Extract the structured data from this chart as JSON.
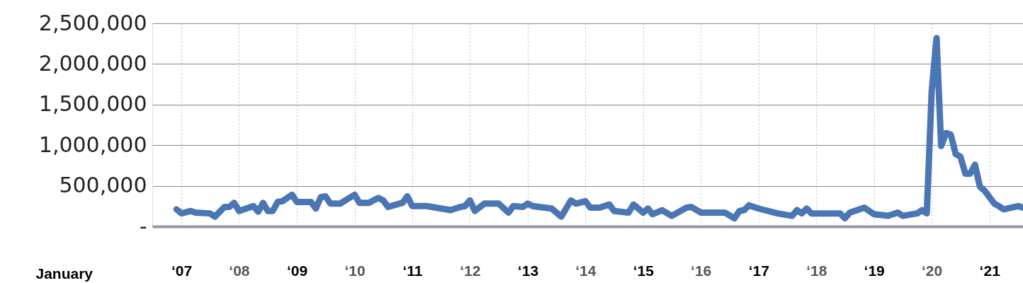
{
  "chart_data": {
    "type": "line",
    "xlabel": "January",
    "x": [
      "2006-12",
      "2007-01",
      "2007-03",
      "2007-04",
      "2007-07",
      "2007-08",
      "2007-10",
      "2007-11",
      "2007-12",
      "2008-01",
      "2008-04",
      "2008-05",
      "2008-06",
      "2008-07",
      "2008-08",
      "2008-09",
      "2008-10",
      "2008-12",
      "2009-01",
      "2009-04",
      "2009-05",
      "2009-06",
      "2009-07",
      "2009-08",
      "2009-10",
      "2010-01",
      "2010-02",
      "2010-04",
      "2010-05",
      "2010-06",
      "2010-07",
      "2010-08",
      "2010-11",
      "2010-12",
      "2011-01",
      "2011-04",
      "2011-09",
      "2011-11",
      "2011-12",
      "2012-01",
      "2012-02",
      "2012-04",
      "2012-07",
      "2012-09",
      "2012-10",
      "2012-12",
      "2013-01",
      "2013-02",
      "2013-06",
      "2013-08",
      "2013-10",
      "2013-11",
      "2014-01",
      "2014-02",
      "2014-04",
      "2014-06",
      "2014-07",
      "2014-10",
      "2014-11",
      "2015-01",
      "2015-02",
      "2015-03",
      "2015-05",
      "2015-07",
      "2015-10",
      "2015-11",
      "2016-01",
      "2016-06",
      "2016-08",
      "2016-09",
      "2016-10",
      "2016-11",
      "2017-01",
      "2017-05",
      "2017-08",
      "2017-09",
      "2017-10",
      "2017-11",
      "2017-12",
      "2018-06",
      "2018-07",
      "2018-08",
      "2018-11",
      "2019-01",
      "2019-04",
      "2019-06",
      "2019-07",
      "2019-10",
      "2019-11",
      "2019-12",
      "2020-01",
      "2020-02",
      "2020-03",
      "2020-04",
      "2020-05",
      "2020-06",
      "2020-07",
      "2020-08",
      "2020-09",
      "2020-10",
      "2020-11",
      "2020-12",
      "2021-02",
      "2021-03",
      "2021-04",
      "2021-07",
      "2021-08"
    ],
    "series": [
      {
        "color": "#4a77b4",
        "values": [
          210000,
          160000,
          190000,
          170000,
          160000,
          120000,
          240000,
          240000,
          290000,
          190000,
          250000,
          180000,
          290000,
          190000,
          190000,
          300000,
          310000,
          390000,
          300000,
          300000,
          220000,
          360000,
          370000,
          280000,
          280000,
          390000,
          290000,
          290000,
          320000,
          350000,
          320000,
          240000,
          290000,
          370000,
          250000,
          250000,
          200000,
          240000,
          250000,
          320000,
          190000,
          280000,
          280000,
          170000,
          250000,
          240000,
          280000,
          250000,
          220000,
          120000,
          320000,
          280000,
          310000,
          230000,
          230000,
          270000,
          190000,
          170000,
          270000,
          170000,
          220000,
          150000,
          200000,
          130000,
          230000,
          240000,
          170000,
          170000,
          100000,
          190000,
          200000,
          260000,
          220000,
          160000,
          130000,
          200000,
          160000,
          220000,
          160000,
          160000,
          100000,
          170000,
          230000,
          150000,
          130000,
          170000,
          130000,
          160000,
          200000,
          160000,
          1660000,
          2320000,
          990000,
          1150000,
          1130000,
          890000,
          860000,
          650000,
          650000,
          760000,
          490000,
          440000,
          280000,
          250000,
          210000,
          250000,
          230000
        ]
      }
    ],
    "xlim": [
      "2006-07",
      "2021-08"
    ],
    "xticks": [
      {
        "value": "2007-01",
        "label": "‘07"
      },
      {
        "value": "2008-01",
        "label": "‘08"
      },
      {
        "value": "2009-01",
        "label": "‘09"
      },
      {
        "value": "2010-01",
        "label": "‘10"
      },
      {
        "value": "2011-01",
        "label": "‘11"
      },
      {
        "value": "2012-01",
        "label": "‘12"
      },
      {
        "value": "2013-01",
        "label": "‘13"
      },
      {
        "value": "2014-01",
        "label": "‘14"
      },
      {
        "value": "2015-01",
        "label": "‘15"
      },
      {
        "value": "2016-01",
        "label": "‘16"
      },
      {
        "value": "2017-01",
        "label": "‘17"
      },
      {
        "value": "2018-01",
        "label": "‘18"
      },
      {
        "value": "2019-01",
        "label": "‘19"
      },
      {
        "value": "2020-01",
        "label": "‘20"
      },
      {
        "value": "2021-01",
        "label": "‘21"
      }
    ],
    "ylim": [
      0,
      2500000
    ],
    "yticks": [
      {
        "value": 0,
        "label": "-"
      },
      {
        "value": 500000,
        "label": "500,000"
      },
      {
        "value": 1000000,
        "label": "1,000,000"
      },
      {
        "value": 1500000,
        "label": "1,500,000"
      },
      {
        "value": 2000000,
        "label": "2,000,000"
      },
      {
        "value": 2500000,
        "label": "2,500,000"
      }
    ],
    "grid": true,
    "line_style": "solid"
  }
}
